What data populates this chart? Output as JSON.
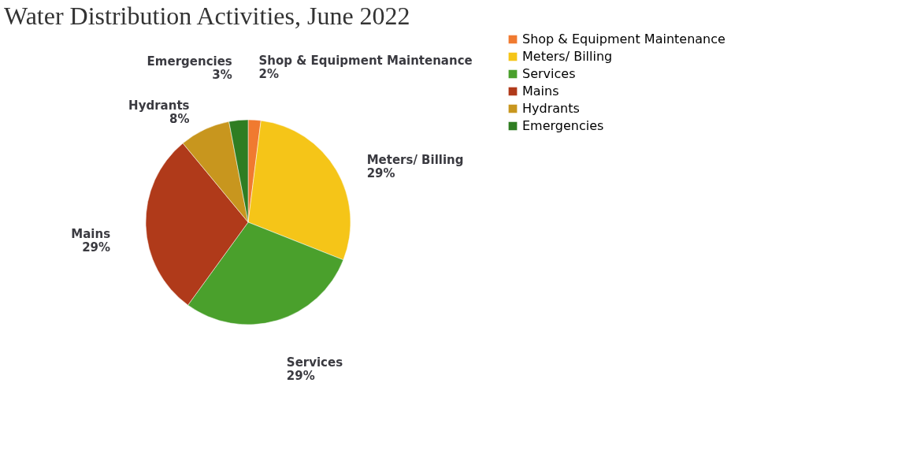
{
  "chart_data": {
    "type": "pie",
    "title": "Water Distribution Activities, June 2022",
    "categories": [
      "Shop & Equipment Maintenance",
      "Meters/ Billing",
      "Services",
      "Mains",
      "Hydrants",
      "Emergencies"
    ],
    "values": [
      2,
      29,
      29,
      29,
      8,
      3
    ],
    "colors": [
      "#f07a30",
      "#f5c518",
      "#4aa02c",
      "#b03a1a",
      "#c8961e",
      "#2f7d22"
    ],
    "value_labels": [
      "2%",
      "29%",
      "29%",
      "29%",
      "8%",
      "3%"
    ],
    "legend": "right"
  }
}
